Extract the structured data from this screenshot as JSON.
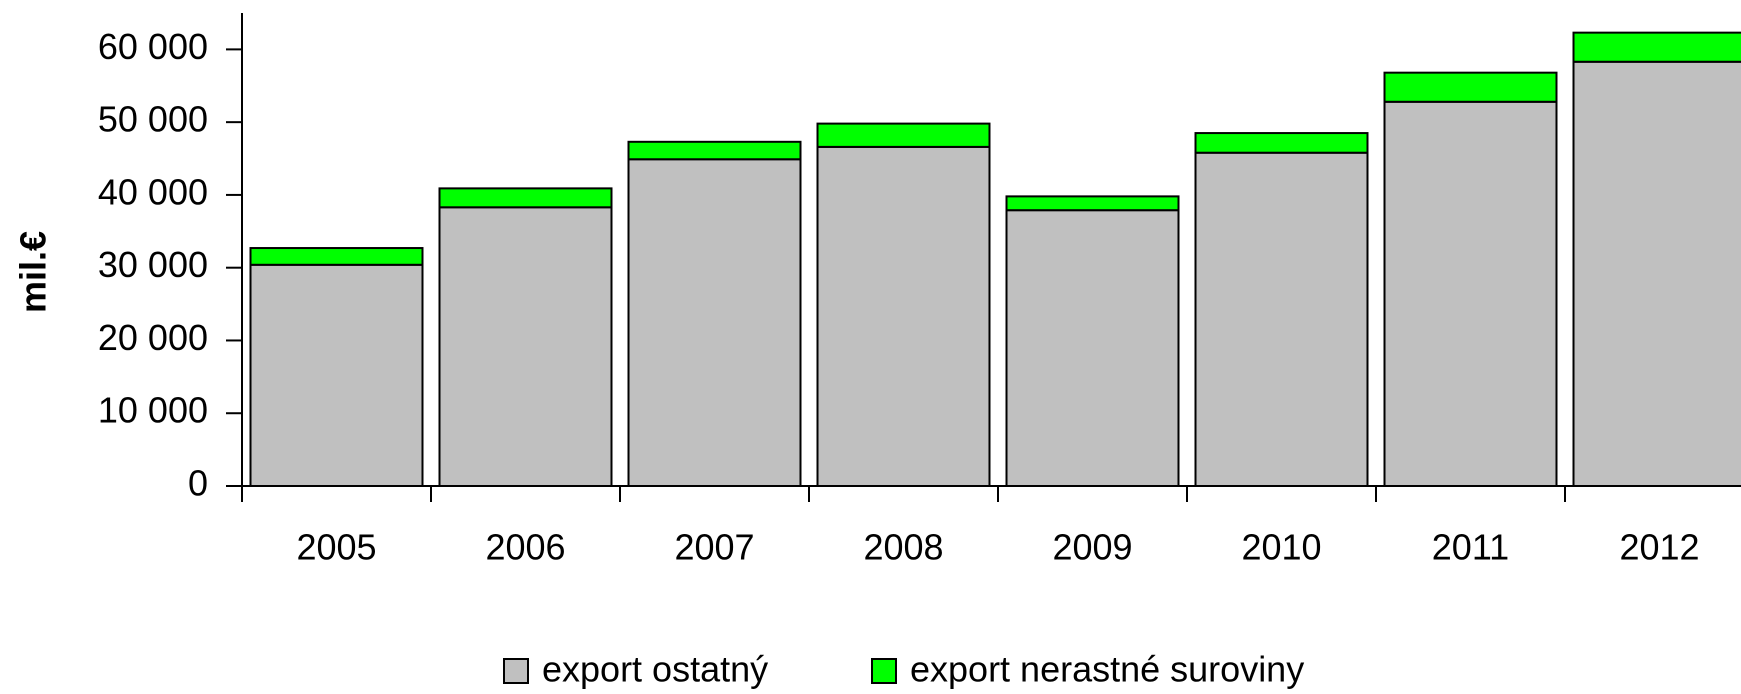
{
  "chart_data": {
    "type": "bar",
    "stacked": true,
    "ylabel": "mil.€",
    "categories": [
      "2005",
      "2006",
      "2007",
      "2008",
      "2009",
      "2010",
      "2011",
      "2012"
    ],
    "series": [
      {
        "name": "export ostatný",
        "color": "#c0c0c0",
        "values": [
          30400,
          38300,
          44900,
          46600,
          37900,
          45800,
          52800,
          58300
        ]
      },
      {
        "name": "export nerastné suroviny",
        "color": "#00ff00",
        "values": [
          2300,
          2600,
          2400,
          3200,
          1900,
          2700,
          4000,
          4000
        ]
      }
    ],
    "ylim": [
      0,
      65000
    ],
    "yticks": [
      0,
      {
        "value": 10000,
        "label": "10 000"
      },
      {
        "value": 20000,
        "label": "20 000"
      },
      {
        "value": 30000,
        "label": "30 000"
      },
      {
        "value": 40000,
        "label": "40 000"
      },
      {
        "value": 50000,
        "label": "50 000"
      },
      {
        "value": 60000,
        "label": "60 000"
      }
    ],
    "grid": false
  }
}
